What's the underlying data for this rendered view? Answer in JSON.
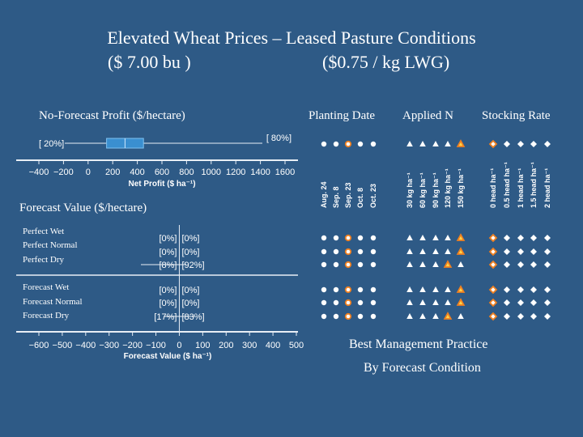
{
  "title_line1": "Elevated Wheat Prices – Leased Pasture Conditions",
  "title_line2_left": "($ 7.00 bu   )",
  "title_line2_right": "($0.75 / kg LWG)",
  "colors": {
    "background": "#2e5a86",
    "axis": "#e8eef5",
    "box": "#3a8fd0",
    "dot": "#ffffff",
    "highlight": "#f08020"
  },
  "chart_data": [
    {
      "type": "box",
      "title": "No-Forecast Profit ($/hectare)",
      "xlabel": "Net Profit ($ ha⁻¹)",
      "xlim": [
        -400,
        1600
      ],
      "ticks": [
        -400,
        -200,
        0,
        200,
        400,
        600,
        800,
        1000,
        1200,
        1400,
        1600
      ],
      "tick_labels": [
        "−400",
        "−200",
        "0",
        "200",
        "400",
        "600",
        "800",
        "1000",
        "1200",
        "1400",
        "1600"
      ],
      "left_label": "[ 20%]",
      "right_label": "[ 80%]",
      "box": {
        "low": 150,
        "high": 450,
        "median": 300
      }
    },
    {
      "type": "bar",
      "title": "Forecast Value ($/hectare)",
      "xlabel": "Forecast Value ($ ha⁻¹)",
      "xlim": [
        -600,
        500
      ],
      "ticks": [
        -600,
        -500,
        -400,
        -300,
        -200,
        -100,
        0,
        100,
        200,
        300,
        400,
        500
      ],
      "tick_labels": [
        "−600",
        "−500",
        "−400",
        "−300",
        "−200",
        "−100",
        "0",
        "100",
        "200",
        "300",
        "400",
        "500"
      ],
      "categories": [
        "Perfect Wet",
        "Perfect Normal",
        "Perfect Dry",
        "Forecast Wet",
        "Forecast  Normal",
        "Forecast  Dry"
      ],
      "left_labels": [
        "[0%]",
        "[0%]",
        "[8%]",
        "[0%]",
        "[0%]",
        "[17%]"
      ],
      "right_labels": [
        "[0%]",
        "[0%]",
        "[92%]",
        "[0%]",
        "[0%]",
        "[83%]"
      ]
    }
  ],
  "management": {
    "headers": [
      "Planting Date",
      "Applied N",
      "Stocking Rate"
    ],
    "planting_dates": [
      "Aug. 24",
      "Sep. 8",
      "Sep. 23",
      "Oct. 8",
      "Oct. 23"
    ],
    "applied_n": [
      "30 kg ha⁻¹",
      "60 kg ha⁻¹",
      "90 kg ha⁻¹",
      "120 kg ha⁻¹",
      "150 kg ha⁻¹"
    ],
    "stocking_rates": [
      "0 head ha⁻¹",
      "0.5 head ha⁻¹",
      "1 head ha⁻¹",
      "1.5 head ha⁻¹",
      "2 head ha⁻¹"
    ],
    "no_forecast_best": [
      3,
      5,
      1
    ],
    "scenario_best": [
      [
        3,
        5,
        1
      ],
      [
        3,
        5,
        1
      ],
      [
        3,
        4,
        1
      ],
      [
        3,
        5,
        1
      ],
      [
        3,
        5,
        1
      ],
      [
        3,
        4,
        1
      ]
    ],
    "caption_line1": "Best Management Practice",
    "caption_line2": "By Forecast Condition"
  }
}
